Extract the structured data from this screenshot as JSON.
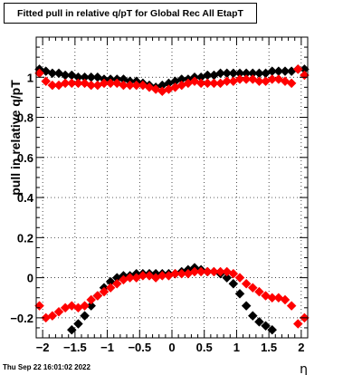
{
  "chart_data": {
    "type": "scatter",
    "title": "Fitted pull in relative q/pT for Global Rec All EtapT",
    "xlabel": "η",
    "ylabel": "pull in relative q/pT",
    "xlim": [
      -2.1,
      2.1
    ],
    "ylim": [
      -0.3,
      1.2
    ],
    "grid": true,
    "x_ticks": [
      -2,
      -1.5,
      -1,
      -0.5,
      0,
      0.5,
      1,
      1.5,
      2
    ],
    "x_tick_labels": [
      "−2",
      "−1.5",
      "−1",
      "−0.5",
      "0",
      "0.5",
      "1",
      "1.5",
      "2"
    ],
    "y_ticks": [
      -0.2,
      0,
      0.2,
      0.4,
      0.6,
      0.8,
      1
    ],
    "y_tick_labels": [
      "−0.2",
      "0",
      "0.2",
      "0.4",
      "0.6",
      "0.8",
      "1"
    ],
    "series": [
      {
        "color": "#000000",
        "role": "mean",
        "x": [
          -2.05,
          -1.95,
          -1.85,
          -1.75,
          -1.65,
          -1.55,
          -1.45,
          -1.35,
          -1.25,
          -1.15,
          -1.05,
          -0.95,
          -0.85,
          -0.75,
          -0.65,
          -0.55,
          -0.45,
          -0.35,
          -0.25,
          -0.15,
          -0.05,
          0.05,
          0.15,
          0.25,
          0.35,
          0.45,
          0.55,
          0.65,
          0.75,
          0.85,
          0.95,
          1.05,
          1.15,
          1.25,
          1.35,
          1.45,
          1.55,
          1.65,
          1.75,
          1.85,
          1.95,
          2.05
        ],
        "y": [
          1.04,
          1.03,
          1.02,
          1.02,
          1.01,
          1.01,
          1.0,
          1.0,
          1.0,
          1.0,
          0.99,
          0.99,
          0.99,
          0.99,
          0.98,
          0.98,
          0.97,
          0.96,
          0.95,
          0.96,
          0.97,
          0.98,
          0.99,
          0.99,
          1.0,
          1.0,
          1.01,
          1.01,
          1.02,
          1.02,
          1.02,
          1.02,
          1.02,
          1.02,
          1.02,
          1.02,
          1.03,
          1.03,
          1.03,
          1.03,
          1.04,
          1.04
        ]
      },
      {
        "color": "#ff0000",
        "role": "mean",
        "x": [
          -2.05,
          -1.95,
          -1.85,
          -1.75,
          -1.65,
          -1.55,
          -1.45,
          -1.35,
          -1.25,
          -1.15,
          -1.05,
          -0.95,
          -0.85,
          -0.75,
          -0.65,
          -0.55,
          -0.45,
          -0.35,
          -0.25,
          -0.15,
          -0.05,
          0.05,
          0.15,
          0.25,
          0.35,
          0.45,
          0.55,
          0.65,
          0.75,
          0.85,
          0.95,
          1.05,
          1.15,
          1.25,
          1.35,
          1.45,
          1.55,
          1.65,
          1.75,
          1.85,
          1.95,
          2.05
        ],
        "y": [
          1.02,
          0.98,
          0.96,
          0.96,
          0.97,
          0.97,
          0.97,
          0.97,
          0.96,
          0.96,
          0.97,
          0.97,
          0.97,
          0.96,
          0.96,
          0.96,
          0.96,
          0.95,
          0.94,
          0.93,
          0.94,
          0.95,
          0.96,
          0.97,
          0.98,
          0.97,
          0.97,
          0.97,
          0.97,
          0.98,
          0.98,
          0.99,
          0.99,
          0.99,
          0.98,
          0.98,
          0.99,
          0.99,
          0.98,
          0.97,
          1.04,
          1.01
        ]
      },
      {
        "color": "#000000",
        "role": "sigma",
        "x": [
          -1.55,
          -1.45,
          -1.35,
          -1.25,
          -1.15,
          -1.05,
          -0.95,
          -0.85,
          -0.75,
          -0.65,
          -0.55,
          -0.45,
          -0.35,
          -0.25,
          -0.15,
          -0.05,
          0.05,
          0.15,
          0.25,
          0.35,
          0.45,
          0.55,
          0.65,
          0.75,
          0.85,
          0.95,
          1.05,
          1.15,
          1.25,
          1.35,
          1.45,
          1.55
        ],
        "y": [
          -0.26,
          -0.23,
          -0.19,
          -0.14,
          -0.09,
          -0.05,
          -0.02,
          0.0,
          0.01,
          0.01,
          0.02,
          0.02,
          0.02,
          0.02,
          0.02,
          0.02,
          0.02,
          0.03,
          0.04,
          0.05,
          0.04,
          0.03,
          0.03,
          0.02,
          0.0,
          -0.03,
          -0.08,
          -0.14,
          -0.19,
          -0.22,
          -0.24,
          -0.26
        ]
      },
      {
        "color": "#ff0000",
        "role": "sigma",
        "x": [
          -2.05,
          -1.95,
          -1.85,
          -1.75,
          -1.65,
          -1.55,
          -1.45,
          -1.35,
          -1.25,
          -1.15,
          -1.05,
          -0.95,
          -0.85,
          -0.75,
          -0.65,
          -0.55,
          -0.45,
          -0.35,
          -0.25,
          -0.15,
          -0.05,
          0.05,
          0.15,
          0.25,
          0.35,
          0.45,
          0.55,
          0.65,
          0.75,
          0.85,
          0.95,
          1.05,
          1.15,
          1.25,
          1.35,
          1.45,
          1.55,
          1.65,
          1.75,
          1.85,
          1.95,
          2.05
        ],
        "y": [
          -0.14,
          -0.2,
          -0.19,
          -0.17,
          -0.15,
          -0.14,
          -0.15,
          -0.14,
          -0.11,
          -0.09,
          -0.07,
          -0.05,
          -0.03,
          -0.01,
          0.0,
          0.0,
          0.01,
          0.01,
          0.0,
          0.01,
          0.01,
          0.02,
          0.02,
          0.02,
          0.03,
          0.03,
          0.03,
          0.03,
          0.03,
          0.03,
          0.02,
          0.0,
          -0.03,
          -0.05,
          -0.07,
          -0.09,
          -0.1,
          -0.1,
          -0.11,
          -0.14,
          -0.23,
          -0.2
        ]
      }
    ]
  },
  "footer_date": "Thu Sep 22 16:01:02 2022"
}
